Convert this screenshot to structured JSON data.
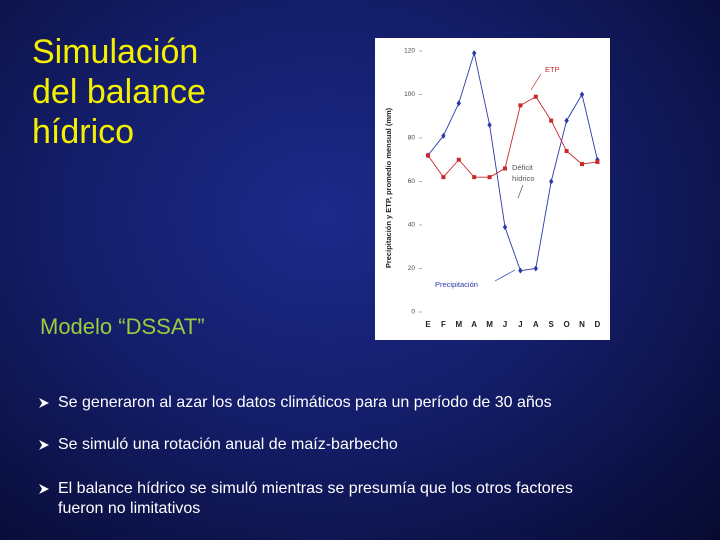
{
  "slide": {
    "title": [
      "Simulación",
      "del balance",
      "hídrico"
    ],
    "subtitle": "Modelo “DSSAT”",
    "bullets": [
      "Se generaron al azar los datos climáticos para un período de 30 años",
      "Se simuló una rotación anual de maíz-barbecho",
      "El balance hídrico se simuló mientras se presumía que los otros factores fueron no limitativos"
    ]
  },
  "chart_data": {
    "type": "line",
    "y_label": "Precipitación y ETP, promedio mensual (mm)",
    "categories": [
      "E",
      "F",
      "M",
      "A",
      "M",
      "J",
      "J",
      "A",
      "S",
      "O",
      "N",
      "D"
    ],
    "series": [
      {
        "name": "Precipitación",
        "color": "#2a3aa8",
        "marker": "diamond",
        "values": [
          72,
          81,
          96,
          119,
          86,
          39,
          19,
          20,
          60,
          88,
          100,
          70
        ]
      },
      {
        "name": "ETP",
        "color": "#c8282a",
        "marker": "square",
        "values": [
          72,
          62,
          70,
          62,
          62,
          66,
          95,
          99,
          88,
          74,
          68,
          69
        ]
      }
    ],
    "annotations": [
      "ETP",
      "Déficit",
      "hídrico",
      "Precipitación"
    ],
    "ylim": [
      0,
      120
    ],
    "yticks": [
      0,
      20,
      40,
      60,
      80,
      100,
      120
    ]
  }
}
